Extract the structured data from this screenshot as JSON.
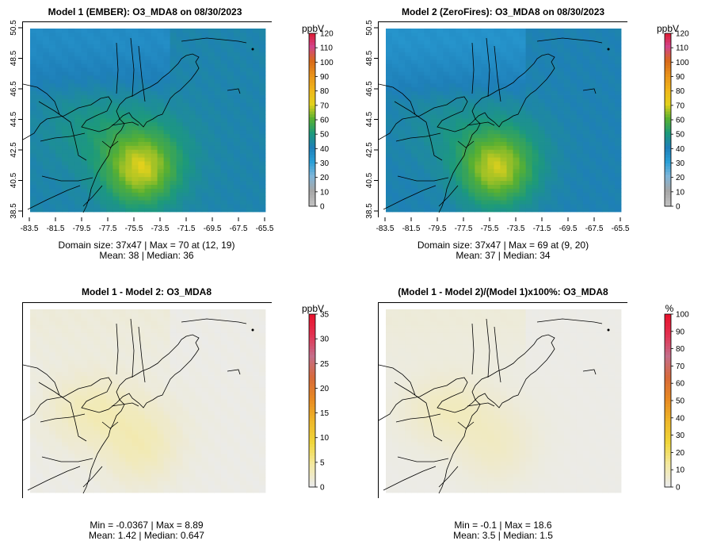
{
  "chart_data": [
    {
      "type": "heatmap",
      "id": "m1",
      "title": "Model 1 (EMBER): O3_MDA8 on 08/30/2023",
      "xticks": [
        "-83.5",
        "-81.5",
        "-79.5",
        "-77.5",
        "-75.5",
        "-73.5",
        "-71.5",
        "-69.5",
        "-67.5",
        "-65.5"
      ],
      "yticks": [
        "38.5",
        "40.5",
        "42.5",
        "44.5",
        "46.5",
        "48.5",
        "50.5"
      ],
      "colorbar": {
        "unit": "ppbV",
        "ticks": [
          "0",
          "10",
          "20",
          "30",
          "40",
          "50",
          "60",
          "70",
          "80",
          "90",
          "100",
          "110",
          "120"
        ],
        "min": 0,
        "max": 120
      },
      "stats": [
        "Domain size: 37x47 | Max = 70 at (12, 19)",
        "Mean: 38 |  Median: 36"
      ],
      "field": {
        "background": 42,
        "hotspot": 66,
        "coastal": 50,
        "north": 36,
        "inland": 50
      }
    },
    {
      "type": "heatmap",
      "id": "m2",
      "title": "Model 2 (ZeroFires): O3_MDA8 on 08/30/2023",
      "xticks": [
        "-83.5",
        "-81.5",
        "-79.5",
        "-77.5",
        "-75.5",
        "-73.5",
        "-71.5",
        "-69.5",
        "-67.5",
        "-65.5"
      ],
      "yticks": [
        "38.5",
        "40.5",
        "42.5",
        "44.5",
        "46.5",
        "48.5",
        "50.5"
      ],
      "colorbar": {
        "unit": "ppbV",
        "ticks": [
          "0",
          "10",
          "20",
          "30",
          "40",
          "50",
          "60",
          "70",
          "80",
          "90",
          "100",
          "110",
          "120"
        ],
        "min": 0,
        "max": 120
      },
      "stats": [
        "Domain size: 37x47 | Max = 69 at (9, 20)",
        "Mean: 37 |  Median: 34"
      ],
      "field": {
        "background": 41,
        "hotspot": 65,
        "coastal": 49,
        "north": 34,
        "inland": 47
      }
    },
    {
      "type": "heatmap",
      "id": "diff",
      "title": "Model 1 - Model 2: O3_MDA8",
      "colorbar": {
        "unit": "ppbV",
        "ticks": [
          "0",
          "5",
          "10",
          "15",
          "20",
          "25",
          "30",
          "35"
        ],
        "min": 0,
        "max": 35
      },
      "stats": [
        "Min = -0.0367 | Max = 8.89",
        "Mean: 1.42 |  Median: 0.647"
      ],
      "field": {
        "background": 0.3,
        "hotspot": 2.5,
        "coastal": 1.5,
        "north": 1.0,
        "inland": 4.0
      }
    },
    {
      "type": "heatmap",
      "id": "pct",
      "title": "(Model 1 - Model 2)/(Model 1)x100%: O3_MDA8",
      "colorbar": {
        "unit": "%",
        "ticks": [
          "0",
          "10",
          "20",
          "30",
          "40",
          "50",
          "60",
          "70",
          "80",
          "90",
          "100"
        ],
        "min": 0,
        "max": 100
      },
      "stats": [
        "Min = -0.1 | Max = 18.6",
        "Mean: 3.5 |  Median: 1.5"
      ],
      "field": {
        "background": 0.8,
        "hotspot": 5,
        "coastal": 3,
        "north": 3,
        "inland": 10
      }
    }
  ],
  "colors": {
    "ppbv_scale": [
      "#c0c0c0",
      "#a6a6a6",
      "#7fb5d9",
      "#2a9fd6",
      "#1e7fb8",
      "#1d9a7a",
      "#58b031",
      "#e2d11c",
      "#f0b51a",
      "#e8921a",
      "#d86a1a",
      "#d1448a",
      "#e0182a"
    ],
    "diff_scale": [
      "#ebebeb",
      "#f4e9a0",
      "#f0d63a",
      "#eeb72a",
      "#e88a22",
      "#d76a3a",
      "#c46e8a",
      "#e33050",
      "#e8102a"
    ],
    "map_background": "#e6e6e6"
  }
}
